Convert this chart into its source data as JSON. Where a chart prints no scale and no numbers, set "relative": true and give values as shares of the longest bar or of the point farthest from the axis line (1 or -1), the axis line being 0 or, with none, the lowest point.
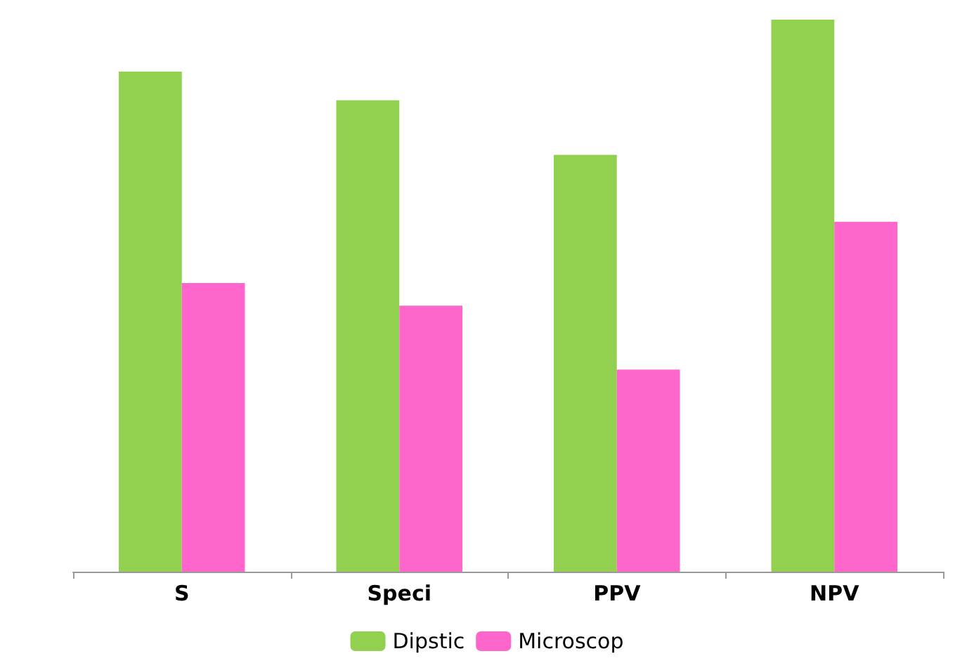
{
  "chart_data": {
    "type": "bar",
    "relative": true,
    "categories": [
      "S",
      "Speci",
      "PPV",
      "NPV"
    ],
    "series": [
      {
        "name": "Dipstic",
        "color": "#92d050",
        "values": [
          0.906,
          0.854,
          0.755,
          1
        ]
      },
      {
        "name": "Microscop",
        "color": "#ff66cc",
        "values": [
          0.523,
          0.482,
          0.366,
          0.634
        ]
      }
    ],
    "legend": "bottom"
  }
}
